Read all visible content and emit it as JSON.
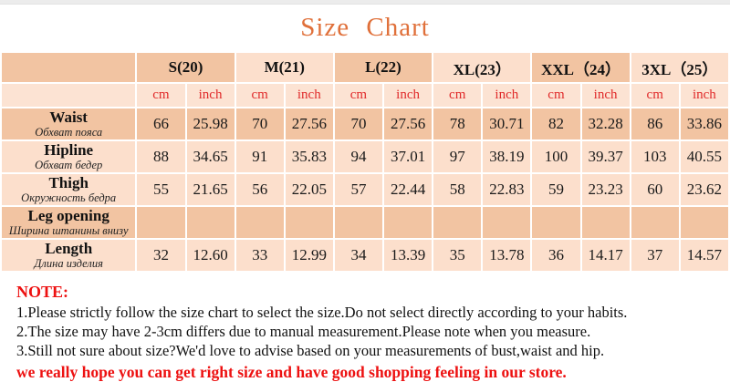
{
  "page": {
    "title": "Size Chart"
  },
  "table": {
    "sizes": [
      {
        "label": "S(20)",
        "shade": "dark"
      },
      {
        "label": "M(21)",
        "shade": "light"
      },
      {
        "label": "L(22)",
        "shade": "dark"
      },
      {
        "label": "XL(23）",
        "shade": "light"
      },
      {
        "label": "XXL（24）",
        "shade": "dark"
      },
      {
        "label": "3XL（25）",
        "shade": "light"
      }
    ],
    "unit_labels": [
      "cm",
      "inch"
    ],
    "rows": [
      {
        "key": "waist",
        "name": "Waist",
        "subtitle": "Обхват пояса",
        "shade": "dark",
        "values": [
          "66",
          "25.98",
          "70",
          "27.56",
          "70",
          "27.56",
          "78",
          "30.71",
          "82",
          "32.28",
          "86",
          "33.86"
        ]
      },
      {
        "key": "hipline",
        "name": "Hipline",
        "subtitle": "Обхват бедер",
        "shade": "light",
        "values": [
          "88",
          "34.65",
          "91",
          "35.83",
          "94",
          "37.01",
          "97",
          "38.19",
          "100",
          "39.37",
          "103",
          "40.55"
        ]
      },
      {
        "key": "thigh",
        "name": "Thigh",
        "subtitle": "Окружность бедра",
        "shade": "light",
        "values": [
          "55",
          "21.65",
          "56",
          "22.05",
          "57",
          "22.44",
          "58",
          "22.83",
          "59",
          "23.23",
          "60",
          "23.62"
        ]
      },
      {
        "key": "leg-opening",
        "name": "Leg opening",
        "subtitle": "Ширина штанины внизу",
        "shade": "dark",
        "values": [
          "",
          "",
          "",
          "",
          "",
          "",
          "",
          "",
          "",
          "",
          "",
          ""
        ]
      },
      {
        "key": "length",
        "name": "Length",
        "subtitle": "Длина изделия",
        "shade": "light",
        "values": [
          "32",
          "12.60",
          "33",
          "12.99",
          "34",
          "13.39",
          "35",
          "13.78",
          "36",
          "14.17",
          "37",
          "14.57"
        ]
      }
    ]
  },
  "note": {
    "heading": "NOTE:",
    "lines": [
      "1.Please strictly follow the size chart to select the size.Do not select directly according to your habits.",
      "2.The size may have 2-3cm differs due to manual measurement.Please note when you measure.",
      "3.Still not sure about size?We'd love to advise based on your measurements of bust,waist and hip."
    ],
    "footer": "we really hope you can get right size and have good shopping feeling in our store."
  },
  "colors": {
    "title_orange": "#e0703a",
    "cell_dark": "#f2c4a2",
    "cell_light": "#fcdfcc",
    "unit_red": "#e02a2a",
    "note_red": "#ed1111",
    "text_black": "#161616"
  }
}
